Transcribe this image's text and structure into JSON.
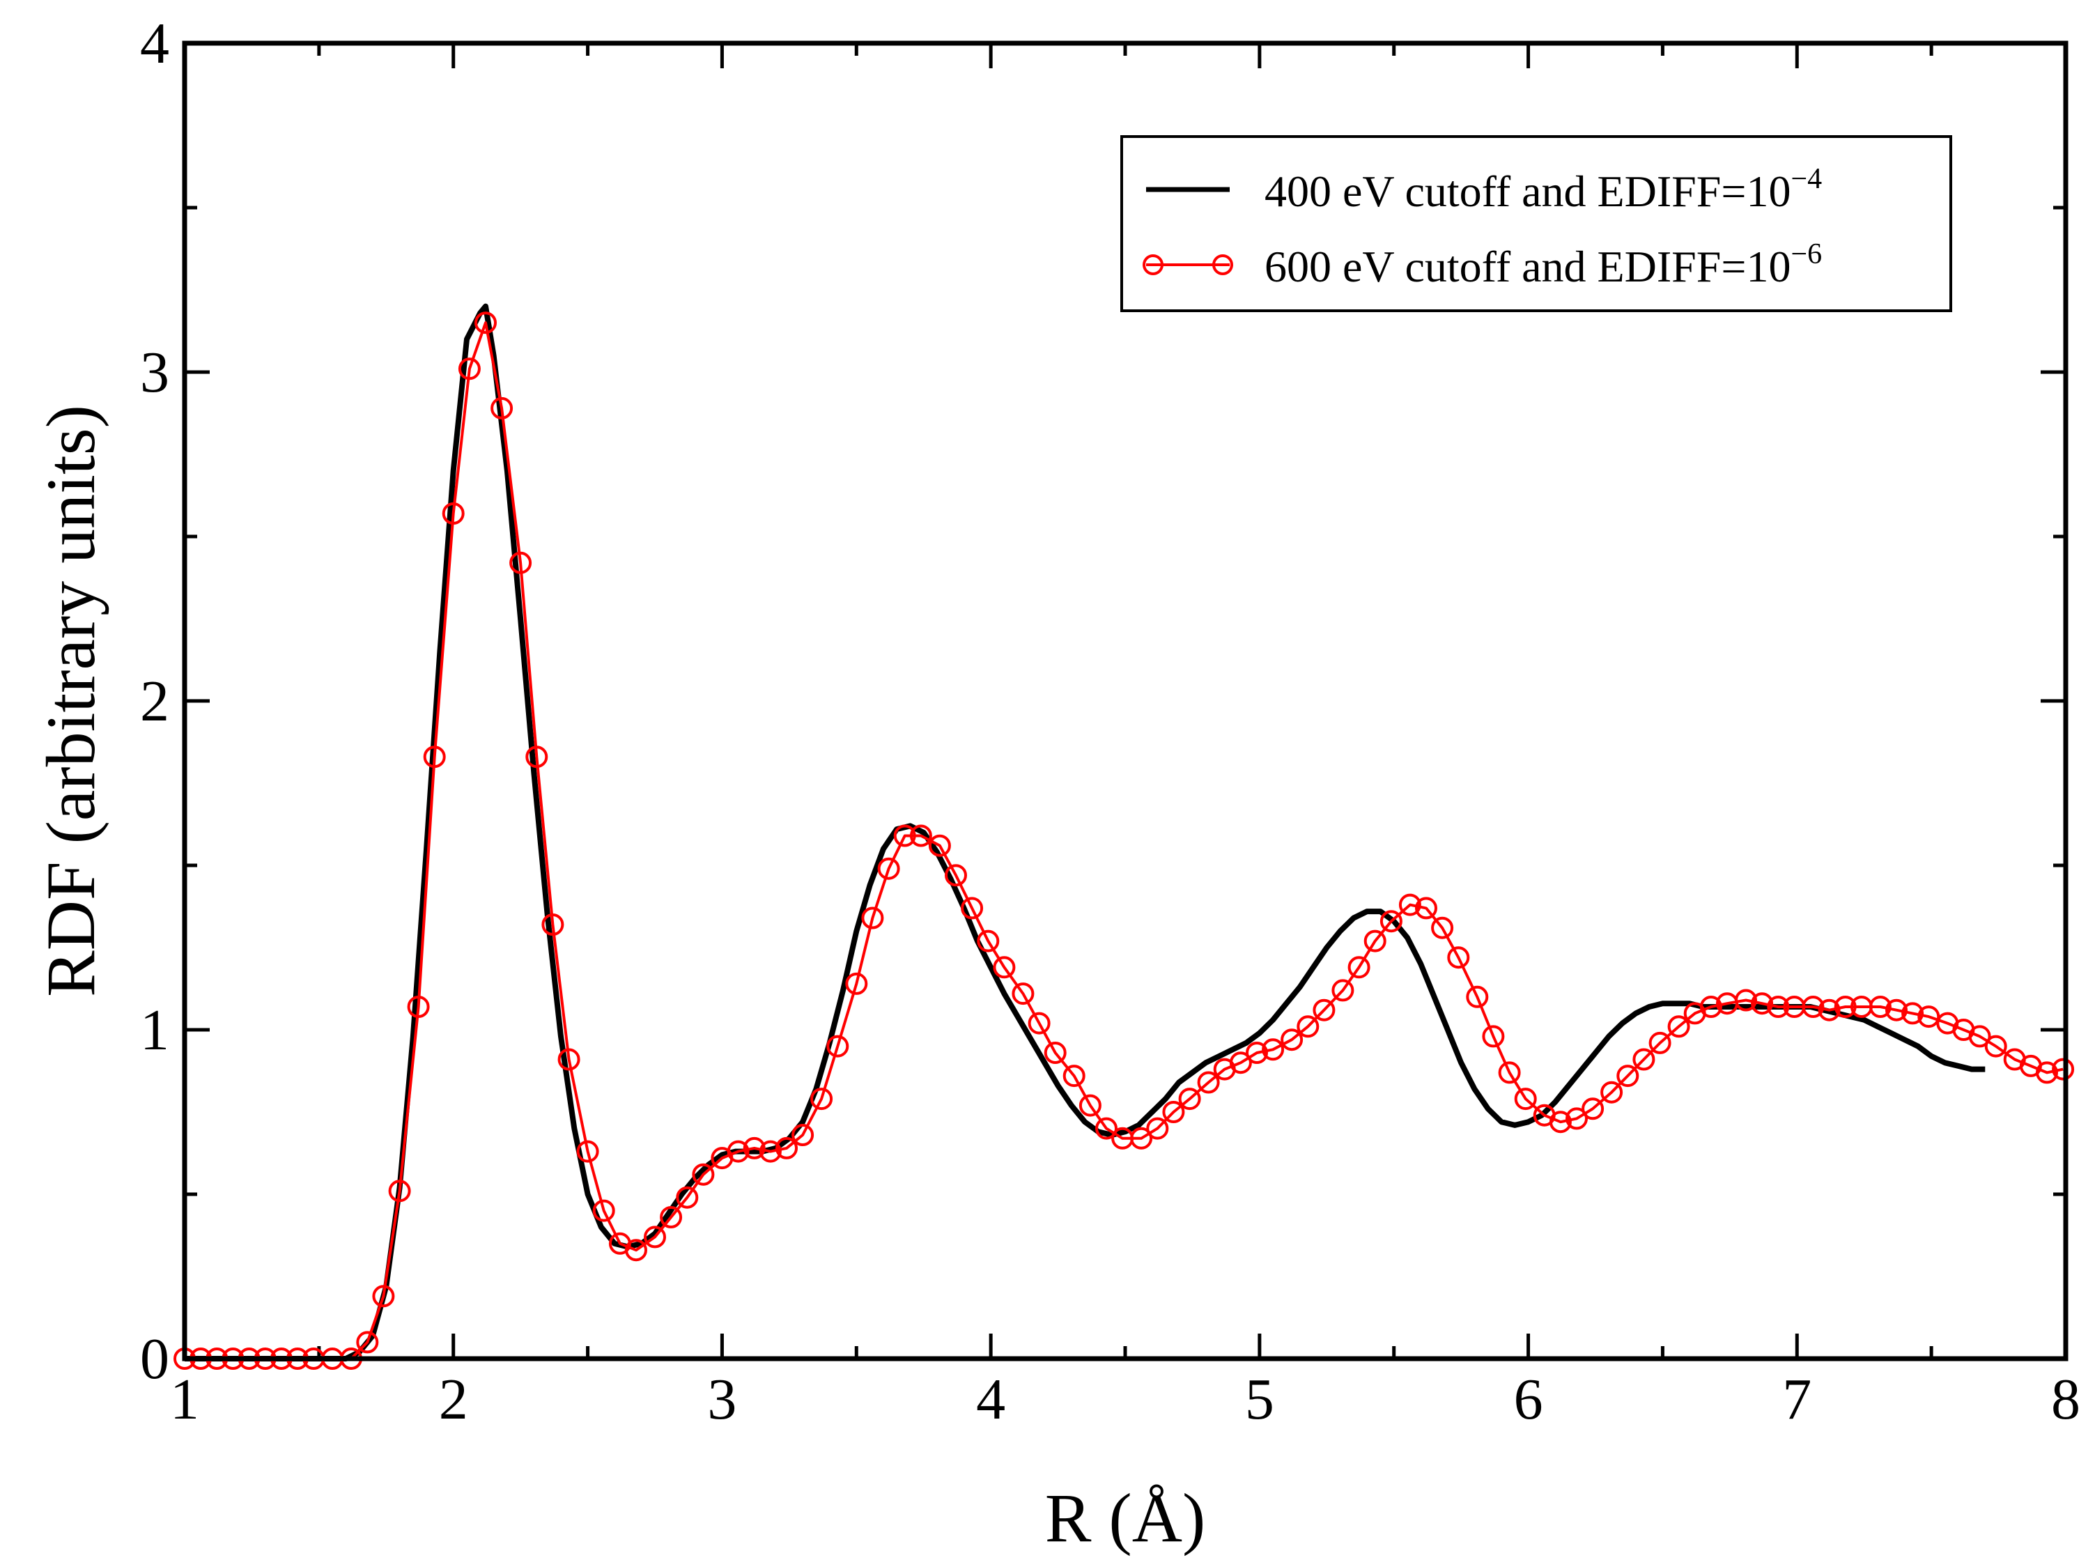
{
  "chart_data": {
    "type": "line",
    "xlabel": "R (Å)",
    "ylabel": "RDF (arbitrary units)",
    "xlim": [
      1,
      8
    ],
    "ylim": [
      0,
      4
    ],
    "x_ticks": [
      1,
      2,
      3,
      4,
      5,
      6,
      7,
      8
    ],
    "y_ticks": [
      0,
      1,
      2,
      3,
      4
    ],
    "x_tick_labels": [
      "1",
      "2",
      "3",
      "4",
      "5",
      "6",
      "7",
      "8"
    ],
    "y_tick_labels": [
      "0",
      "1",
      "2",
      "3",
      "4"
    ],
    "grid": false,
    "legend_position": "top-right",
    "series": [
      {
        "name": "400 eV cutoff and EDIFF=10^-4",
        "legend_base": "400 eV cutoff and EDIFF=10",
        "legend_exp": "−4",
        "color": "#000000",
        "style": "line",
        "points": [
          [
            1.0,
            0
          ],
          [
            1.6,
            0
          ],
          [
            1.65,
            0.02
          ],
          [
            1.7,
            0.07
          ],
          [
            1.75,
            0.22
          ],
          [
            1.8,
            0.52
          ],
          [
            1.85,
            0.98
          ],
          [
            1.9,
            1.55
          ],
          [
            1.95,
            2.15
          ],
          [
            2.0,
            2.7
          ],
          [
            2.05,
            3.1
          ],
          [
            2.1,
            3.18
          ],
          [
            2.12,
            3.2
          ],
          [
            2.15,
            3.05
          ],
          [
            2.2,
            2.7
          ],
          [
            2.25,
            2.25
          ],
          [
            2.3,
            1.78
          ],
          [
            2.35,
            1.35
          ],
          [
            2.4,
            0.98
          ],
          [
            2.45,
            0.7
          ],
          [
            2.5,
            0.5
          ],
          [
            2.55,
            0.4
          ],
          [
            2.6,
            0.35
          ],
          [
            2.65,
            0.34
          ],
          [
            2.7,
            0.35
          ],
          [
            2.75,
            0.38
          ],
          [
            2.8,
            0.44
          ],
          [
            2.85,
            0.5
          ],
          [
            2.9,
            0.55
          ],
          [
            2.95,
            0.59
          ],
          [
            3.0,
            0.62
          ],
          [
            3.05,
            0.63
          ],
          [
            3.1,
            0.63
          ],
          [
            3.15,
            0.63
          ],
          [
            3.2,
            0.64
          ],
          [
            3.25,
            0.67
          ],
          [
            3.3,
            0.72
          ],
          [
            3.35,
            0.82
          ],
          [
            3.4,
            0.96
          ],
          [
            3.45,
            1.12
          ],
          [
            3.5,
            1.3
          ],
          [
            3.55,
            1.44
          ],
          [
            3.6,
            1.55
          ],
          [
            3.65,
            1.61
          ],
          [
            3.7,
            1.62
          ],
          [
            3.75,
            1.6
          ],
          [
            3.8,
            1.54
          ],
          [
            3.85,
            1.46
          ],
          [
            3.9,
            1.37
          ],
          [
            3.95,
            1.27
          ],
          [
            4.0,
            1.19
          ],
          [
            4.05,
            1.11
          ],
          [
            4.1,
            1.04
          ],
          [
            4.15,
            0.97
          ],
          [
            4.2,
            0.9
          ],
          [
            4.25,
            0.83
          ],
          [
            4.3,
            0.77
          ],
          [
            4.35,
            0.72
          ],
          [
            4.4,
            0.69
          ],
          [
            4.45,
            0.68
          ],
          [
            4.5,
            0.69
          ],
          [
            4.55,
            0.71
          ],
          [
            4.6,
            0.75
          ],
          [
            4.65,
            0.79
          ],
          [
            4.7,
            0.84
          ],
          [
            4.75,
            0.87
          ],
          [
            4.8,
            0.9
          ],
          [
            4.85,
            0.92
          ],
          [
            4.9,
            0.94
          ],
          [
            4.95,
            0.96
          ],
          [
            5.0,
            0.99
          ],
          [
            5.05,
            1.03
          ],
          [
            5.1,
            1.08
          ],
          [
            5.15,
            1.13
          ],
          [
            5.2,
            1.19
          ],
          [
            5.25,
            1.25
          ],
          [
            5.3,
            1.3
          ],
          [
            5.35,
            1.34
          ],
          [
            5.4,
            1.36
          ],
          [
            5.45,
            1.36
          ],
          [
            5.5,
            1.33
          ],
          [
            5.55,
            1.28
          ],
          [
            5.6,
            1.2
          ],
          [
            5.65,
            1.1
          ],
          [
            5.7,
            1.0
          ],
          [
            5.75,
            0.9
          ],
          [
            5.8,
            0.82
          ],
          [
            5.85,
            0.76
          ],
          [
            5.9,
            0.72
          ],
          [
            5.95,
            0.71
          ],
          [
            6.0,
            0.72
          ],
          [
            6.05,
            0.74
          ],
          [
            6.1,
            0.78
          ],
          [
            6.15,
            0.83
          ],
          [
            6.2,
            0.88
          ],
          [
            6.25,
            0.93
          ],
          [
            6.3,
            0.98
          ],
          [
            6.35,
            1.02
          ],
          [
            6.4,
            1.05
          ],
          [
            6.45,
            1.07
          ],
          [
            6.5,
            1.08
          ],
          [
            6.55,
            1.08
          ],
          [
            6.6,
            1.08
          ],
          [
            6.65,
            1.07
          ],
          [
            6.7,
            1.07
          ],
          [
            6.75,
            1.07
          ],
          [
            6.8,
            1.07
          ],
          [
            6.85,
            1.07
          ],
          [
            6.9,
            1.07
          ],
          [
            6.95,
            1.07
          ],
          [
            7.0,
            1.07
          ],
          [
            7.05,
            1.07
          ],
          [
            7.1,
            1.06
          ],
          [
            7.15,
            1.05
          ],
          [
            7.2,
            1.04
          ],
          [
            7.25,
            1.03
          ],
          [
            7.3,
            1.01
          ],
          [
            7.35,
            0.99
          ],
          [
            7.4,
            0.97
          ],
          [
            7.45,
            0.95
          ],
          [
            7.5,
            0.92
          ],
          [
            7.55,
            0.9
          ],
          [
            7.6,
            0.89
          ],
          [
            7.65,
            0.88
          ],
          [
            7.7,
            0.88
          ]
        ]
      },
      {
        "name": "600 eV cutoff and EDIFF=10^-6",
        "legend_base": "600 eV cutoff and EDIFF=10",
        "legend_exp": "−6",
        "color": "#ff0000",
        "style": "line-circles",
        "points": [
          [
            1.0,
            0
          ],
          [
            1.06,
            0
          ],
          [
            1.12,
            0
          ],
          [
            1.18,
            0
          ],
          [
            1.24,
            0
          ],
          [
            1.3,
            0
          ],
          [
            1.36,
            0
          ],
          [
            1.42,
            0
          ],
          [
            1.48,
            0
          ],
          [
            1.55,
            0
          ],
          [
            1.62,
            0
          ],
          [
            1.68,
            0.05
          ],
          [
            1.74,
            0.19
          ],
          [
            1.8,
            0.51
          ],
          [
            1.87,
            1.07
          ],
          [
            1.93,
            1.83
          ],
          [
            2.0,
            2.57
          ],
          [
            2.06,
            3.01
          ],
          [
            2.12,
            3.15
          ],
          [
            2.18,
            2.89
          ],
          [
            2.25,
            2.42
          ],
          [
            2.31,
            1.83
          ],
          [
            2.37,
            1.32
          ],
          [
            2.43,
            0.91
          ],
          [
            2.5,
            0.63
          ],
          [
            2.56,
            0.45
          ],
          [
            2.62,
            0.35
          ],
          [
            2.68,
            0.33
          ],
          [
            2.75,
            0.37
          ],
          [
            2.81,
            0.43
          ],
          [
            2.87,
            0.49
          ],
          [
            2.93,
            0.56
          ],
          [
            3.0,
            0.61
          ],
          [
            3.06,
            0.63
          ],
          [
            3.12,
            0.64
          ],
          [
            3.18,
            0.63
          ],
          [
            3.24,
            0.64
          ],
          [
            3.3,
            0.68
          ],
          [
            3.37,
            0.79
          ],
          [
            3.43,
            0.95
          ],
          [
            3.5,
            1.14
          ],
          [
            3.56,
            1.34
          ],
          [
            3.62,
            1.49
          ],
          [
            3.68,
            1.59
          ],
          [
            3.74,
            1.59
          ],
          [
            3.81,
            1.56
          ],
          [
            3.87,
            1.47
          ],
          [
            3.93,
            1.37
          ],
          [
            3.99,
            1.27
          ],
          [
            4.05,
            1.19
          ],
          [
            4.12,
            1.11
          ],
          [
            4.18,
            1.02
          ],
          [
            4.24,
            0.93
          ],
          [
            4.31,
            0.86
          ],
          [
            4.37,
            0.77
          ],
          [
            4.43,
            0.7
          ],
          [
            4.49,
            0.67
          ],
          [
            4.56,
            0.67
          ],
          [
            4.62,
            0.7
          ],
          [
            4.68,
            0.75
          ],
          [
            4.74,
            0.79
          ],
          [
            4.81,
            0.84
          ],
          [
            4.87,
            0.88
          ],
          [
            4.93,
            0.9
          ],
          [
            4.99,
            0.93
          ],
          [
            5.05,
            0.94
          ],
          [
            5.12,
            0.97
          ],
          [
            5.18,
            1.01
          ],
          [
            5.24,
            1.06
          ],
          [
            5.31,
            1.12
          ],
          [
            5.37,
            1.19
          ],
          [
            5.43,
            1.27
          ],
          [
            5.49,
            1.33
          ],
          [
            5.56,
            1.38
          ],
          [
            5.62,
            1.37
          ],
          [
            5.68,
            1.31
          ],
          [
            5.74,
            1.22
          ],
          [
            5.81,
            1.1
          ],
          [
            5.87,
            0.98
          ],
          [
            5.93,
            0.87
          ],
          [
            5.99,
            0.79
          ],
          [
            6.06,
            0.74
          ],
          [
            6.12,
            0.72
          ],
          [
            6.18,
            0.73
          ],
          [
            6.24,
            0.76
          ],
          [
            6.31,
            0.81
          ],
          [
            6.37,
            0.86
          ],
          [
            6.43,
            0.91
          ],
          [
            6.49,
            0.96
          ],
          [
            6.56,
            1.01
          ],
          [
            6.62,
            1.05
          ],
          [
            6.68,
            1.07
          ],
          [
            6.74,
            1.08
          ],
          [
            6.81,
            1.09
          ],
          [
            6.87,
            1.08
          ],
          [
            6.93,
            1.07
          ],
          [
            6.99,
            1.07
          ],
          [
            7.06,
            1.07
          ],
          [
            7.12,
            1.06
          ],
          [
            7.18,
            1.07
          ],
          [
            7.24,
            1.07
          ],
          [
            7.31,
            1.07
          ],
          [
            7.37,
            1.06
          ],
          [
            7.43,
            1.05
          ],
          [
            7.49,
            1.04
          ],
          [
            7.56,
            1.02
          ],
          [
            7.62,
            1.0
          ],
          [
            7.68,
            0.98
          ],
          [
            7.74,
            0.95
          ],
          [
            7.81,
            0.91
          ],
          [
            7.87,
            0.89
          ],
          [
            7.93,
            0.87
          ],
          [
            7.99,
            0.88
          ]
        ]
      }
    ]
  }
}
